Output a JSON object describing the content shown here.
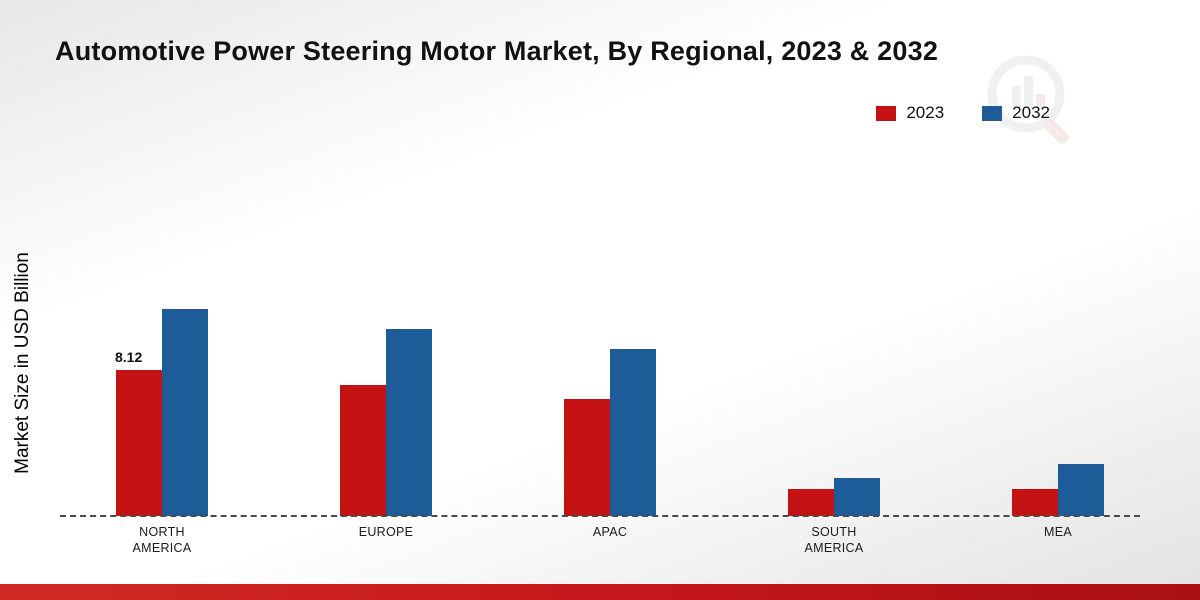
{
  "title": "Automotive Power Steering Motor Market, By Regional, 2023 & 2032",
  "y_axis_label": "Market Size in USD Billion",
  "legend": [
    {
      "label": "2023",
      "color": "#c41111"
    },
    {
      "label": "2032",
      "color": "#1e5c99"
    }
  ],
  "footer_bar_color": "#c4161c",
  "chart_data": {
    "type": "bar",
    "title": "Automotive Power Steering Motor Market, By Regional, 2023 & 2032",
    "xlabel": "",
    "ylabel": "Market Size in USD Billion",
    "categories": [
      "NORTH AMERICA",
      "EUROPE",
      "APAC",
      "SOUTH AMERICA",
      "MEA"
    ],
    "series": [
      {
        "name": "2023",
        "color": "#c41111",
        "values": [
          8.12,
          7.3,
          6.5,
          1.5,
          1.5
        ]
      },
      {
        "name": "2032",
        "color": "#1e5c99",
        "values": [
          11.5,
          10.4,
          9.3,
          2.1,
          2.9
        ]
      }
    ],
    "ylim": [
      0,
      12
    ],
    "grid": false,
    "legend_position": "top-right",
    "baseline_style": "dashed",
    "bar_labels": [
      {
        "category_index": 0,
        "series_index": 0,
        "label": "8.12"
      }
    ]
  }
}
